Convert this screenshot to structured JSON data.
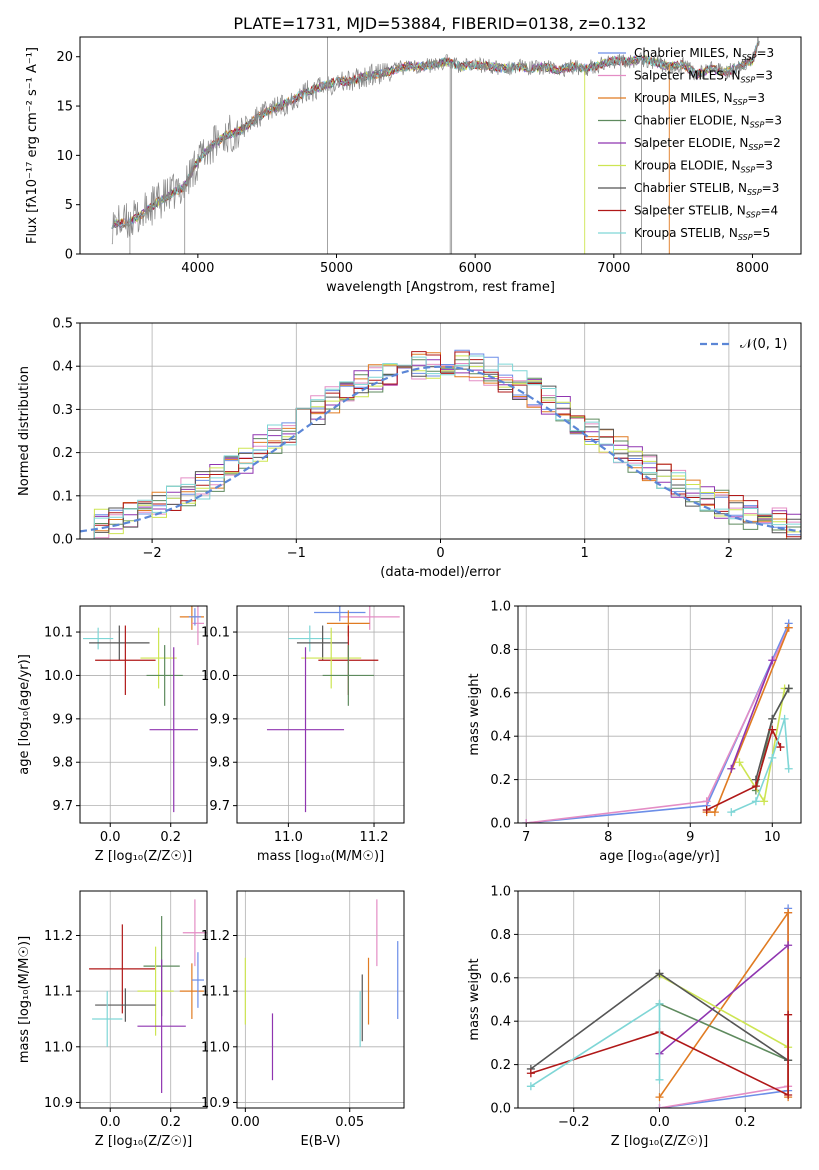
{
  "figure": {
    "title": "PLATE=1731, MJD=53884, FIBERID=0138, z=0.132"
  },
  "colors": {
    "Chabrier MILES": "#6c8ee8",
    "Salpeter MILES": "#e48dc5",
    "Kroupa MILES": "#e07b22",
    "Chabrier ELODIE": "#5e8a5e",
    "Salpeter ELODIE": "#8f35b0",
    "Kroupa ELODIE": "#cde552",
    "Chabrier STELIB": "#555555",
    "Salpeter STELIB": "#b01818",
    "Kroupa STELIB": "#7fd6d6",
    "gaussian": "#5b86d6",
    "grid": "#b0b0b0"
  },
  "chart_data": [
    {
      "id": "spectrum",
      "type": "line",
      "title": "PLATE=1731, MJD=53884, FIBERID=0138, z=0.132",
      "xlabel": "wavelength [Angstrom, rest frame]",
      "ylabel": "Flux [fλ10⁻¹⁷ erg cm⁻² s⁻¹ A⁻¹]",
      "xlim": [
        3150,
        8350
      ],
      "ylim": [
        0,
        22
      ],
      "xticks": [
        4000,
        5000,
        6000,
        7000,
        8000
      ],
      "yticks": [
        0,
        5,
        10,
        15,
        20
      ],
      "grid": false,
      "legend_position": "right",
      "legend": [
        {
          "label": "Chabrier MILES, N",
          "sub": "SSP",
          "tail": "=3",
          "color": "#6c8ee8"
        },
        {
          "label": "Salpeter MILES, N",
          "sub": "SSP",
          "tail": "=3",
          "color": "#e48dc5"
        },
        {
          "label": "Kroupa MILES, N",
          "sub": "SSP",
          "tail": "=3",
          "color": "#e07b22"
        },
        {
          "label": "Chabrier ELODIE, N",
          "sub": "SSP",
          "tail": "=3",
          "color": "#5e8a5e"
        },
        {
          "label": "Salpeter ELODIE, N",
          "sub": "SSP",
          "tail": "=2",
          "color": "#8f35b0"
        },
        {
          "label": "Kroupa ELODIE, N",
          "sub": "SSP",
          "tail": "=3",
          "color": "#cde552"
        },
        {
          "label": "Chabrier STELIB, N",
          "sub": "SSP",
          "tail": "=3",
          "color": "#555555"
        },
        {
          "label": "Salpeter STELIB, N",
          "sub": "SSP",
          "tail": "=4",
          "color": "#b01818"
        },
        {
          "label": "Kroupa STELIB, N",
          "sub": "SSP",
          "tail": "=5",
          "color": "#7fd6d6"
        }
      ],
      "continuum_points": [
        [
          3380,
          3.0
        ],
        [
          3500,
          3.2
        ],
        [
          3600,
          4.0
        ],
        [
          3700,
          5.2
        ],
        [
          3800,
          6.0
        ],
        [
          3900,
          6.8
        ],
        [
          4000,
          9.5
        ],
        [
          4100,
          11.0
        ],
        [
          4200,
          12.0
        ],
        [
          4300,
          12.5
        ],
        [
          4400,
          13.5
        ],
        [
          4500,
          14.5
        ],
        [
          4600,
          15.0
        ],
        [
          4700,
          15.8
        ],
        [
          4800,
          16.5
        ],
        [
          4900,
          17.0
        ],
        [
          5000,
          17.5
        ],
        [
          5100,
          17.5
        ],
        [
          5200,
          18.0
        ],
        [
          5300,
          18.2
        ],
        [
          5400,
          18.6
        ],
        [
          5500,
          19.0
        ],
        [
          5600,
          19.0
        ],
        [
          5700,
          19.2
        ],
        [
          5800,
          19.5
        ],
        [
          5900,
          19.0
        ],
        [
          6000,
          19.2
        ],
        [
          6100,
          19.0
        ],
        [
          6200,
          18.8
        ],
        [
          6300,
          19.0
        ],
        [
          6400,
          18.8
        ],
        [
          6500,
          19.0
        ],
        [
          6600,
          18.6
        ],
        [
          6700,
          19.0
        ],
        [
          6800,
          18.8
        ],
        [
          6900,
          19.2
        ],
        [
          7000,
          19.6
        ],
        [
          7100,
          19.5
        ],
        [
          7200,
          19.8
        ],
        [
          7300,
          19.4
        ],
        [
          7400,
          19.0
        ],
        [
          7500,
          19.2
        ],
        [
          7600,
          18.2
        ],
        [
          7700,
          18.8
        ],
        [
          7800,
          18.4
        ],
        [
          7900,
          19.0
        ],
        [
          8000,
          19.6
        ],
        [
          8050,
          21.8
        ]
      ]
    },
    {
      "id": "residuals",
      "type": "histogram",
      "xlabel": "(data-model)/error",
      "ylabel": "Normed distribution",
      "xlim": [
        -2.5,
        2.5
      ],
      "ylim": [
        0,
        0.5
      ],
      "xticks": [
        -2,
        -1,
        0,
        1,
        2
      ],
      "yticks": [
        0.0,
        0.1,
        0.2,
        0.3,
        0.4,
        0.5
      ],
      "grid": true,
      "legend_position": "top-right",
      "legend_label": "𝒩(0, 1)",
      "bin_width": 0.1,
      "bin_start": -2.5
    },
    {
      "id": "age-vs-Z",
      "type": "scatter",
      "xlabel": "Z [log₁₀(Z/Z☉)]",
      "ylabel": "age  [log₁₀(age/yr)]",
      "xlim": [
        -0.1,
        0.32
      ],
      "ylim": [
        9.66,
        10.16
      ],
      "xticks": [
        0.0,
        0.2
      ],
      "yticks": [
        9.7,
        9.8,
        9.9,
        10.0,
        10.1
      ],
      "grid": true,
      "points": [
        {
          "model": "Kroupa MILES",
          "x": 0.27,
          "y": 10.135,
          "xerr": 0.04,
          "yerr": 0.03
        },
        {
          "model": "Salpeter MILES",
          "x": 0.29,
          "y": 10.12,
          "xerr": 0.02,
          "yerr": 0.05
        },
        {
          "model": "Chabrier MILES",
          "x": 0.28,
          "y": 10.135,
          "xerr": 0.02,
          "yerr": 0.02
        },
        {
          "model": "Kroupa STELIB",
          "x": -0.04,
          "y": 10.085,
          "xerr": 0.05,
          "yerr": 0.025
        },
        {
          "model": "Chabrier STELIB",
          "x": 0.03,
          "y": 10.075,
          "xerr": 0.1,
          "yerr": 0.04
        },
        {
          "model": "Salpeter STELIB",
          "x": 0.05,
          "y": 10.035,
          "xerr": 0.1,
          "yerr": 0.08
        },
        {
          "model": "Kroupa ELODIE",
          "x": 0.16,
          "y": 10.04,
          "xerr": 0.06,
          "yerr": 0.07
        },
        {
          "model": "Chabrier ELODIE",
          "x": 0.18,
          "y": 10.0,
          "xerr": 0.06,
          "yerr": 0.07
        },
        {
          "model": "Salpeter ELODIE",
          "x": 0.21,
          "y": 9.875,
          "xerr": 0.08,
          "yerr": 0.19
        }
      ]
    },
    {
      "id": "age-vs-mass",
      "type": "scatter",
      "xlabel": "mass [log₁₀(M/M☉)]",
      "ylabel": "",
      "xlim": [
        10.88,
        11.27
      ],
      "ylim": [
        9.66,
        10.16
      ],
      "xticks": [
        11.0,
        11.2
      ],
      "yticks": [
        9.7,
        9.8,
        9.9,
        10.0,
        10.1
      ],
      "grid": true,
      "points": [
        {
          "model": "Salpeter MILES",
          "x": 11.19,
          "y": 10.135,
          "xerr": 0.07,
          "yerr": 0.03
        },
        {
          "model": "Chabrier MILES",
          "x": 11.12,
          "y": 10.145,
          "xerr": 0.06,
          "yerr": 0.02
        },
        {
          "model": "Kroupa MILES",
          "x": 11.14,
          "y": 10.12,
          "xerr": 0.05,
          "yerr": 0.03
        },
        {
          "model": "Kroupa STELIB",
          "x": 11.05,
          "y": 10.085,
          "xerr": 0.05,
          "yerr": 0.03
        },
        {
          "model": "Chabrier STELIB",
          "x": 11.08,
          "y": 10.075,
          "xerr": 0.06,
          "yerr": 0.04
        },
        {
          "model": "Salpeter STELIB",
          "x": 11.14,
          "y": 10.035,
          "xerr": 0.07,
          "yerr": 0.08
        },
        {
          "model": "Kroupa ELODIE",
          "x": 11.1,
          "y": 10.04,
          "xerr": 0.07,
          "yerr": 0.07
        },
        {
          "model": "Chabrier ELODIE",
          "x": 11.14,
          "y": 10.0,
          "xerr": 0.06,
          "yerr": 0.07
        },
        {
          "model": "Salpeter ELODIE",
          "x": 11.04,
          "y": 9.875,
          "xerr": 0.09,
          "yerr": 0.19
        }
      ]
    },
    {
      "id": "weight-vs-age",
      "type": "line",
      "xlabel": "age  [log₁₀(age/yr)]",
      "ylabel": "mass weight",
      "xlim": [
        6.9,
        10.35
      ],
      "ylim": [
        0,
        1
      ],
      "xticks": [
        7,
        8,
        9,
        10
      ],
      "yticks": [
        0.0,
        0.2,
        0.4,
        0.6,
        0.8,
        1.0
      ],
      "grid": true,
      "series": [
        {
          "model": "Chabrier MILES",
          "points": [
            [
              7.0,
              0.0
            ],
            [
              9.2,
              0.08
            ],
            [
              10.2,
              0.92
            ]
          ]
        },
        {
          "model": "Salpeter MILES",
          "points": [
            [
              7.0,
              0.0
            ],
            [
              9.2,
              0.1
            ],
            [
              10.2,
              0.9
            ]
          ]
        },
        {
          "model": "Kroupa MILES",
          "points": [
            [
              9.2,
              0.05
            ],
            [
              9.3,
              0.05
            ],
            [
              10.2,
              0.9
            ]
          ]
        },
        {
          "model": "Chabrier ELODIE",
          "points": [
            [
              9.8,
              0.15
            ],
            [
              10.0,
              0.48
            ],
            [
              10.2,
              0.62
            ]
          ]
        },
        {
          "model": "Salpeter ELODIE",
          "points": [
            [
              9.5,
              0.25
            ],
            [
              10.0,
              0.75
            ]
          ]
        },
        {
          "model": "Kroupa ELODIE",
          "points": [
            [
              9.6,
              0.28
            ],
            [
              9.9,
              0.1
            ],
            [
              10.15,
              0.62
            ]
          ]
        },
        {
          "model": "Chabrier STELIB",
          "points": [
            [
              9.8,
              0.2
            ],
            [
              10.0,
              0.48
            ],
            [
              10.2,
              0.62
            ]
          ]
        },
        {
          "model": "Salpeter STELIB",
          "points": [
            [
              9.2,
              0.06
            ],
            [
              9.8,
              0.17
            ],
            [
              10.0,
              0.43
            ],
            [
              10.1,
              0.35
            ]
          ]
        },
        {
          "model": "Kroupa STELIB",
          "points": [
            [
              9.5,
              0.05
            ],
            [
              9.8,
              0.1
            ],
            [
              10.0,
              0.3
            ],
            [
              10.15,
              0.48
            ],
            [
              10.2,
              0.25
            ]
          ]
        }
      ]
    },
    {
      "id": "mass-vs-Z",
      "type": "scatter",
      "xlabel": "Z [log₁₀(Z/Z☉)]",
      "ylabel": "mass [log₁₀(M/M☉)]",
      "xlim": [
        -0.1,
        0.32
      ],
      "ylim": [
        10.89,
        11.28
      ],
      "xticks": [
        0.0,
        0.2
      ],
      "yticks": [
        10.9,
        11.0,
        11.1,
        11.2
      ],
      "grid": true,
      "points": [
        {
          "model": "Salpeter MILES",
          "x": 0.28,
          "y": 11.205,
          "xerr": 0.04,
          "yerr": 0.06
        },
        {
          "model": "Salpeter STELIB",
          "x": 0.04,
          "y": 11.14,
          "xerr": 0.11,
          "yerr": 0.08
        },
        {
          "model": "Chabrier ELODIE",
          "x": 0.17,
          "y": 11.145,
          "xerr": 0.06,
          "yerr": 0.09
        },
        {
          "model": "Kroupa MILES",
          "x": 0.27,
          "y": 11.1,
          "xerr": 0.04,
          "yerr": 0.05
        },
        {
          "model": "Chabrier MILES",
          "x": 0.29,
          "y": 11.12,
          "xerr": 0.02,
          "yerr": 0.05
        },
        {
          "model": "Kroupa ELODIE",
          "x": 0.15,
          "y": 11.1,
          "xerr": 0.06,
          "yerr": 0.08
        },
        {
          "model": "Chabrier STELIB",
          "x": 0.05,
          "y": 11.075,
          "xerr": 0.1,
          "yerr": 0.03
        },
        {
          "model": "Kroupa STELIB",
          "x": -0.01,
          "y": 11.05,
          "xerr": 0.05,
          "yerr": 0.05
        },
        {
          "model": "Salpeter ELODIE",
          "x": 0.17,
          "y": 11.037,
          "xerr": 0.08,
          "yerr": 0.12
        }
      ]
    },
    {
      "id": "mass-vs-ebv",
      "type": "scatter",
      "xlabel": "E(B-V)",
      "ylabel": "",
      "xlim": [
        -0.004,
        0.076
      ],
      "ylim": [
        10.89,
        11.28
      ],
      "xticks": [
        0.0,
        0.05
      ],
      "yticks": [
        10.9,
        11.0,
        11.1,
        11.2
      ],
      "grid": true,
      "points": [
        {
          "model": "Kroupa ELODIE",
          "x": 0.0,
          "y": 11.1,
          "xerr": 0.0,
          "yerr": 0.06
        },
        {
          "model": "Salpeter ELODIE",
          "x": 0.013,
          "y": 11.0,
          "xerr": 0.0,
          "yerr": 0.06
        },
        {
          "model": "Kroupa STELIB",
          "x": 0.055,
          "y": 11.05,
          "xerr": 0.0,
          "yerr": 0.05
        },
        {
          "model": "Chabrier STELIB",
          "x": 0.056,
          "y": 11.07,
          "xerr": 0.0,
          "yerr": 0.06
        },
        {
          "model": "Kroupa MILES",
          "x": 0.059,
          "y": 11.1,
          "xerr": 0.0,
          "yerr": 0.06
        },
        {
          "model": "Salpeter MILES",
          "x": 0.063,
          "y": 11.205,
          "xerr": 0.0,
          "yerr": 0.06
        },
        {
          "model": "Chabrier MILES",
          "x": 0.073,
          "y": 11.12,
          "xerr": 0.0,
          "yerr": 0.07
        }
      ]
    },
    {
      "id": "weight-vs-Z",
      "type": "line",
      "xlabel": "Z [log₁₀(Z/Z☉)]",
      "ylabel": "mass weight",
      "xlim": [
        -0.33,
        0.33
      ],
      "ylim": [
        0,
        1
      ],
      "xticks": [
        -0.2,
        0.0,
        0.2
      ],
      "yticks": [
        0.0,
        0.2,
        0.4,
        0.6,
        0.8,
        1.0
      ],
      "grid": true,
      "series": [
        {
          "model": "Chabrier MILES",
          "points": [
            [
              0.0,
              0.0
            ],
            [
              0.3,
              0.08
            ],
            [
              0.3,
              0.92
            ]
          ]
        },
        {
          "model": "Salpeter MILES",
          "points": [
            [
              0.0,
              0.0
            ],
            [
              0.3,
              0.1
            ],
            [
              0.3,
              0.9
            ]
          ]
        },
        {
          "model": "Kroupa MILES",
          "points": [
            [
              0.0,
              0.05
            ],
            [
              0.3,
              0.9
            ],
            [
              0.3,
              0.05
            ]
          ]
        },
        {
          "model": "Chabrier ELODIE",
          "points": [
            [
              0.0,
              0.48
            ],
            [
              0.3,
              0.22
            ]
          ]
        },
        {
          "model": "Salpeter ELODIE",
          "points": [
            [
              0.0,
              0.25
            ],
            [
              0.3,
              0.75
            ]
          ]
        },
        {
          "model": "Kroupa ELODIE",
          "points": [
            [
              0.0,
              0.61
            ],
            [
              0.3,
              0.28
            ]
          ]
        },
        {
          "model": "Chabrier STELIB",
          "points": [
            [
              -0.3,
              0.18
            ],
            [
              0.0,
              0.62
            ],
            [
              0.3,
              0.22
            ]
          ]
        },
        {
          "model": "Salpeter STELIB",
          "points": [
            [
              -0.3,
              0.16
            ],
            [
              0.0,
              0.35
            ],
            [
              0.3,
              0.06
            ],
            [
              0.3,
              0.43
            ]
          ]
        },
        {
          "model": "Kroupa STELIB",
          "points": [
            [
              -0.3,
              0.1
            ],
            [
              0.0,
              0.48
            ],
            [
              0.0,
              0.13
            ]
          ]
        }
      ]
    }
  ]
}
